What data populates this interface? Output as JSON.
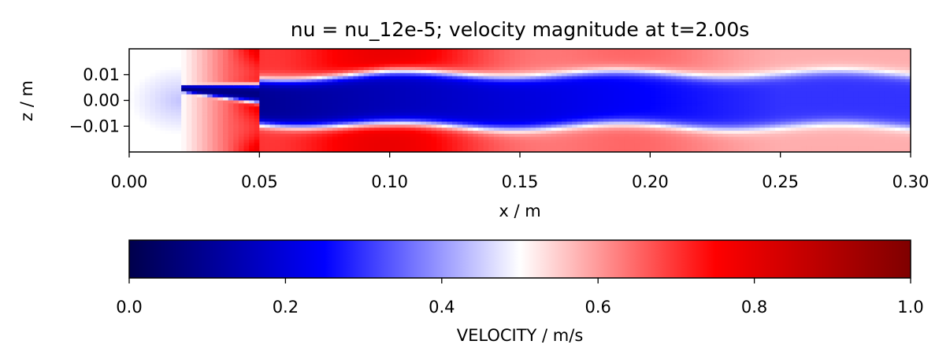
{
  "chart_data": [
    {
      "type": "heatmap",
      "title": "nu = nu_12e-5; velocity magnitude at t=2.00s",
      "xlabel": "x / m",
      "ylabel": "z / m",
      "xlim": [
        0.0,
        0.3
      ],
      "ylim": [
        -0.02,
        0.02
      ],
      "xticks": [
        0.0,
        0.05,
        0.1,
        0.15,
        0.2,
        0.25,
        0.3
      ],
      "xtick_labels": [
        "0.00",
        "0.05",
        "0.10",
        "0.15",
        "0.20",
        "0.25",
        "0.30"
      ],
      "yticks": [
        0.01,
        0.0,
        -0.01
      ],
      "ytick_labels": [
        "0.01",
        "0.00",
        "−0.01"
      ],
      "colormap": "seismic",
      "value_range": [
        0.0,
        1.0
      ],
      "jet": {
        "nozzle_x": 0.02,
        "outer_start_x": 0.05,
        "core_velocity": 0.1,
        "ambient_velocity": 0.75
      }
    },
    {
      "type": "heatmap",
      "role": "colorbar",
      "label": "VELOCITY / m/s",
      "range": [
        0.0,
        1.0
      ],
      "ticks": [
        0.0,
        0.2,
        0.4,
        0.6,
        0.8,
        1.0
      ],
      "tick_labels": [
        "0.0",
        "0.2",
        "0.4",
        "0.6",
        "0.8",
        "1.0"
      ],
      "colormap": "seismic",
      "colormap_stops": [
        "#00004c",
        "#0000ff",
        "#ffffff",
        "#ff0000",
        "#7f0000"
      ]
    }
  ]
}
